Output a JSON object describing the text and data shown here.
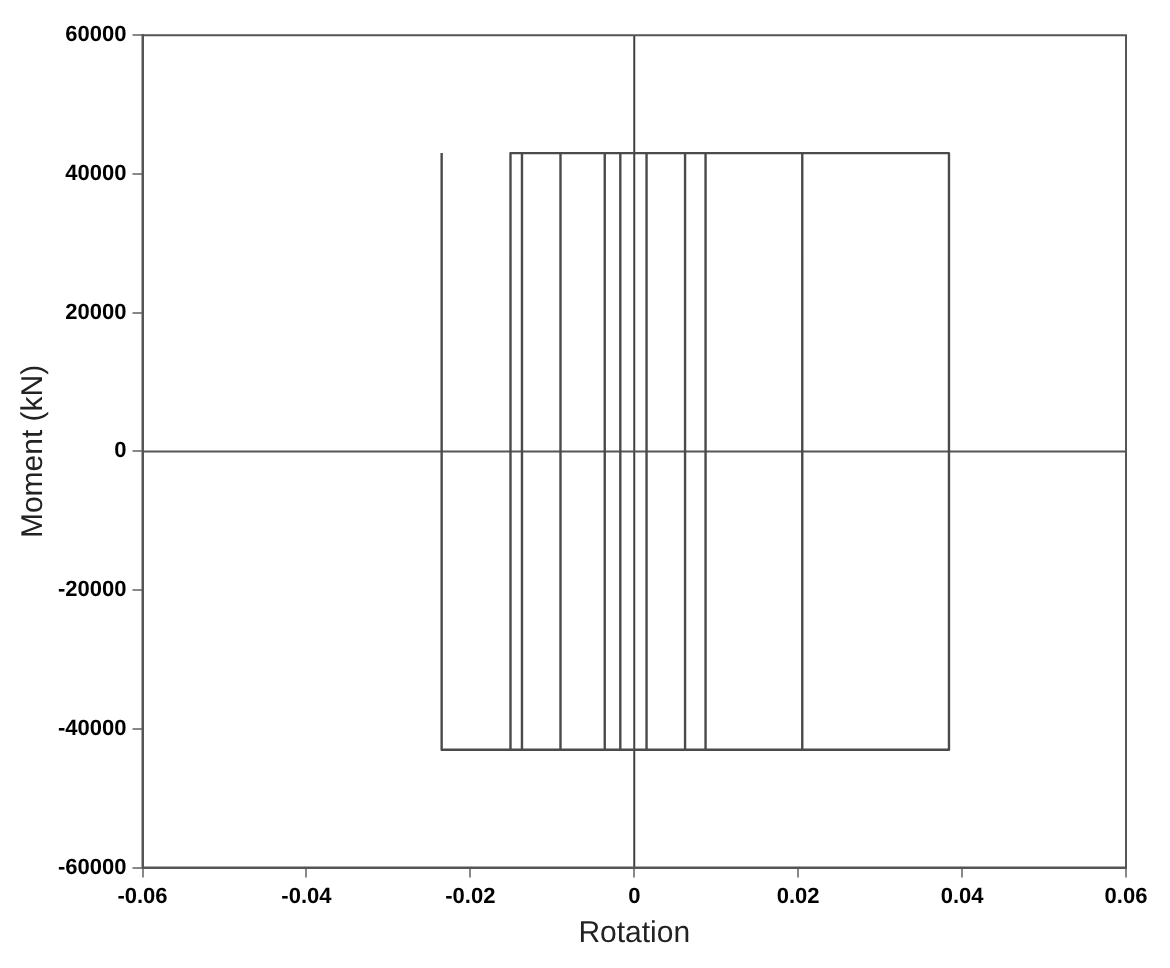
{
  "chart_data": {
    "type": "line",
    "xlabel": "Rotation",
    "ylabel": "Moment (kN)",
    "xlim": [
      -0.06,
      0.06
    ],
    "xticks": [
      -0.06,
      -0.04,
      -0.02,
      0,
      0.02,
      0.04,
      0.06
    ],
    "ylim": [
      -60000,
      60000
    ],
    "yticks": [
      -60000,
      -40000,
      -20000,
      0,
      20000,
      40000,
      60000
    ],
    "grid": false,
    "legend": false,
    "marker": "none",
    "line_style": "solid",
    "ref_lines": [
      {
        "axis": "x",
        "value": 0,
        "color": "#404040"
      },
      {
        "axis": "y",
        "value": 0,
        "color": "#555555"
      }
    ],
    "series": [
      {
        "color": "#4a4a4a",
        "x": [
          -0.0017,
          -0.0017,
          0.0015,
          0.0015,
          -0.0036,
          -0.0036,
          0.0062,
          0.0062,
          -0.009,
          -0.009,
          0.0087,
          0.0087,
          -0.0137,
          -0.0137,
          0.0205,
          0.0205,
          -0.0151,
          -0.0151,
          0.0384,
          0.0384,
          -0.0235,
          -0.0235
        ],
        "values": [
          -43000,
          43000,
          43000,
          -43000,
          -43000,
          43000,
          43000,
          -43000,
          -43000,
          43000,
          43000,
          -43000,
          -43000,
          43000,
          43000,
          -43000,
          -43000,
          43000,
          43000,
          -43000,
          -43000,
          43000
        ]
      }
    ]
  }
}
